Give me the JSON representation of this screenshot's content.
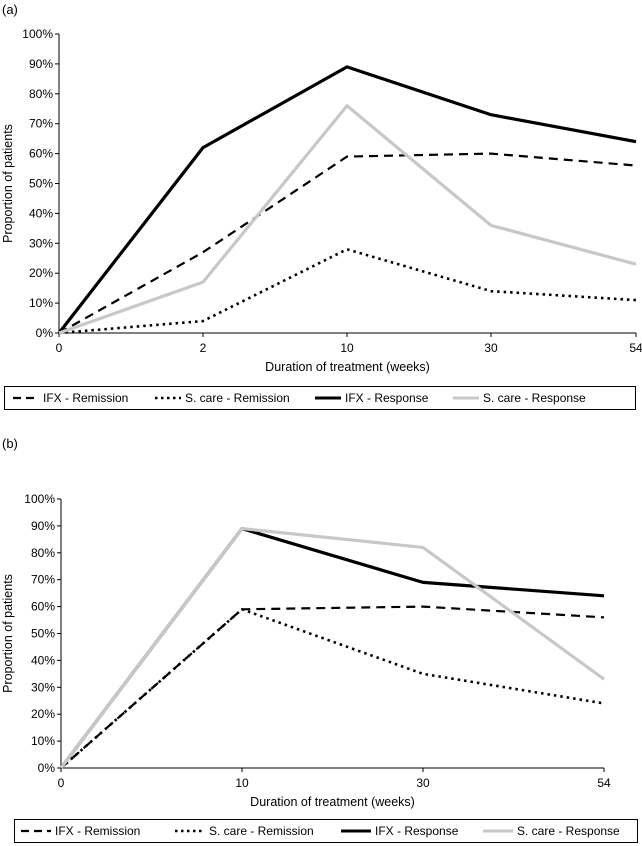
{
  "charts": [
    {
      "panel_label": "(a)",
      "legend": [
        "IFX - Remission",
        "S. care - Remission",
        "IFX - Response",
        "S. care - Response"
      ]
    },
    {
      "panel_label": "(b)",
      "legend": [
        "IFX - Remission",
        "S. care - Remission",
        "IFX - Response",
        "S. care - Response"
      ]
    }
  ],
  "chart_data": [
    {
      "type": "line",
      "title": "",
      "xlabel": "Duration of treatment (weeks)",
      "ylabel": "Proportion of patients",
      "categories": [
        "0",
        "2",
        "10",
        "30",
        "54"
      ],
      "ylim": [
        0,
        100
      ],
      "yticks": [
        "0%",
        "10%",
        "20%",
        "30%",
        "40%",
        "50%",
        "60%",
        "70%",
        "80%",
        "90%",
        "100%"
      ],
      "legend_position": "bottom",
      "series": [
        {
          "name": "IFX - Remission",
          "values": [
            0,
            27,
            59,
            60,
            56
          ],
          "color": "#000000",
          "style": "dashed"
        },
        {
          "name": "S. care - Remission",
          "values": [
            0,
            4,
            28,
            14,
            11
          ],
          "color": "#000000",
          "style": "dotted"
        },
        {
          "name": "IFX - Response",
          "values": [
            0,
            62,
            89,
            73,
            64
          ],
          "color": "#000000",
          "style": "solid"
        },
        {
          "name": "S. care - Response",
          "values": [
            0,
            17,
            76,
            36,
            23
          ],
          "color": "#c8c8c8",
          "style": "solid"
        }
      ]
    },
    {
      "type": "line",
      "title": "",
      "xlabel": "Duration of treatment (weeks)",
      "ylabel": "Proportion of patients",
      "categories": [
        "0",
        "10",
        "30",
        "54"
      ],
      "ylim": [
        0,
        100
      ],
      "yticks": [
        "0%",
        "10%",
        "20%",
        "30%",
        "40%",
        "50%",
        "60%",
        "70%",
        "80%",
        "90%",
        "100%"
      ],
      "legend_position": "bottom",
      "series": [
        {
          "name": "IFX - Remission",
          "values": [
            0,
            59,
            60,
            56
          ],
          "color": "#000000",
          "style": "dashed"
        },
        {
          "name": "S. care - Remission",
          "values": [
            0,
            59,
            35,
            24
          ],
          "color": "#000000",
          "style": "dotted"
        },
        {
          "name": "IFX - Response",
          "values": [
            0,
            89,
            69,
            64
          ],
          "color": "#000000",
          "style": "solid"
        },
        {
          "name": "S. care - Response",
          "values": [
            0,
            89,
            82,
            33
          ],
          "color": "#c8c8c8",
          "style": "solid"
        }
      ]
    }
  ]
}
